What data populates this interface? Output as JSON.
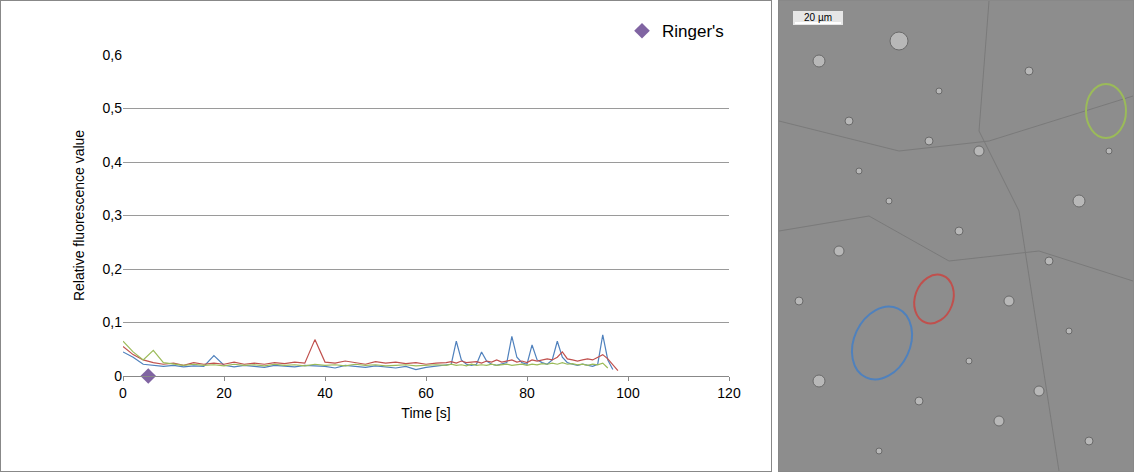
{
  "chart_data": {
    "type": "line",
    "x_title": "Time [s]",
    "y_title": "Relative fluorescence value",
    "xlim": [
      0,
      120
    ],
    "xticks": [
      0,
      20,
      40,
      60,
      80,
      100,
      120
    ],
    "ylim": [
      0,
      0.6
    ],
    "yticks": [
      0,
      {
        "value": 0.1,
        "label": "0,1"
      },
      {
        "value": 0.2,
        "label": "0,2"
      },
      {
        "value": 0.3,
        "label": "0,3"
      },
      {
        "value": 0.4,
        "label": "0,4"
      },
      {
        "value": 0.5,
        "label": "0,5"
      },
      {
        "value": 0.6,
        "label": "0,6"
      }
    ],
    "grid": true,
    "legend": "upper right",
    "x": [
      0,
      2,
      4,
      6,
      8,
      10,
      12,
      14,
      16,
      18,
      20,
      22,
      24,
      26,
      28,
      30,
      32,
      34,
      36,
      38,
      40,
      42,
      44,
      46,
      48,
      50,
      52,
      54,
      56,
      58,
      60,
      62,
      64,
      65,
      66,
      67,
      68,
      69,
      70,
      71,
      72,
      73,
      74,
      75,
      76,
      77,
      78,
      79,
      80,
      81,
      82,
      83,
      84,
      85,
      86,
      87,
      88,
      89,
      90,
      91,
      92,
      93,
      94,
      95,
      96,
      97,
      98
    ],
    "series": [
      {
        "color": "#4f81bd",
        "type": "line",
        "values": [
          0.045,
          0.035,
          0.022,
          0.02,
          0.018,
          0.02,
          0.017,
          0.019,
          0.018,
          0.038,
          0.02,
          0.017,
          0.02,
          0.018,
          0.016,
          0.02,
          0.018,
          0.017,
          0.02,
          0.019,
          0.018,
          0.015,
          0.02,
          0.018,
          0.016,
          0.019,
          0.017,
          0.015,
          0.018,
          0.012,
          0.016,
          0.018,
          0.02,
          0.022,
          0.065,
          0.03,
          0.022,
          0.02,
          0.022,
          0.045,
          0.028,
          0.022,
          0.02,
          0.022,
          0.025,
          0.074,
          0.035,
          0.025,
          0.022,
          0.058,
          0.03,
          0.025,
          0.022,
          0.03,
          0.065,
          0.035,
          0.025,
          0.022,
          0.02,
          0.022,
          0.02,
          0.018,
          0.022,
          0.077,
          0.03,
          0.012,
          null
        ]
      },
      {
        "color": "#c0504d",
        "type": "line",
        "values": [
          0.055,
          0.04,
          0.03,
          0.025,
          0.022,
          0.024,
          0.02,
          0.025,
          0.022,
          0.024,
          0.022,
          0.026,
          0.022,
          0.024,
          0.022,
          0.025,
          0.023,
          0.026,
          0.024,
          0.068,
          0.026,
          0.024,
          0.028,
          0.025,
          0.022,
          0.027,
          0.024,
          0.026,
          0.023,
          0.025,
          0.022,
          0.024,
          0.025,
          0.027,
          0.024,
          0.028,
          0.025,
          0.026,
          0.027,
          0.024,
          0.028,
          0.026,
          0.03,
          0.026,
          0.028,
          0.03,
          0.026,
          0.028,
          0.025,
          0.03,
          0.028,
          0.03,
          0.032,
          0.03,
          0.035,
          0.045,
          0.032,
          0.03,
          0.028,
          0.03,
          0.032,
          0.03,
          0.035,
          0.04,
          0.032,
          0.02,
          0.01
        ]
      },
      {
        "color": "#9bbb59",
        "type": "line",
        "values": [
          0.065,
          0.045,
          0.03,
          0.048,
          0.025,
          0.022,
          0.02,
          0.022,
          0.02,
          0.021,
          0.019,
          0.022,
          0.02,
          0.021,
          0.019,
          0.022,
          0.02,
          0.021,
          0.019,
          0.022,
          0.02,
          0.021,
          0.019,
          0.022,
          0.02,
          0.021,
          0.019,
          0.02,
          0.021,
          0.019,
          0.02,
          0.021,
          0.02,
          0.022,
          0.02,
          0.021,
          0.019,
          0.022,
          0.02,
          0.021,
          0.02,
          0.022,
          0.02,
          0.021,
          0.022,
          0.02,
          0.021,
          0.022,
          0.02,
          0.022,
          0.021,
          0.023,
          0.022,
          0.024,
          0.022,
          0.025,
          0.022,
          0.023,
          0.021,
          0.022,
          0.02,
          0.022,
          0.021,
          0.024,
          0.015,
          null,
          null
        ]
      },
      {
        "name": "Ringer's",
        "color": "#8064a2",
        "type": "scatter",
        "marker": "diamond",
        "x": [
          5
        ],
        "values": [
          0
        ]
      }
    ]
  },
  "image": {
    "scale_bar_label": "20 µm"
  }
}
